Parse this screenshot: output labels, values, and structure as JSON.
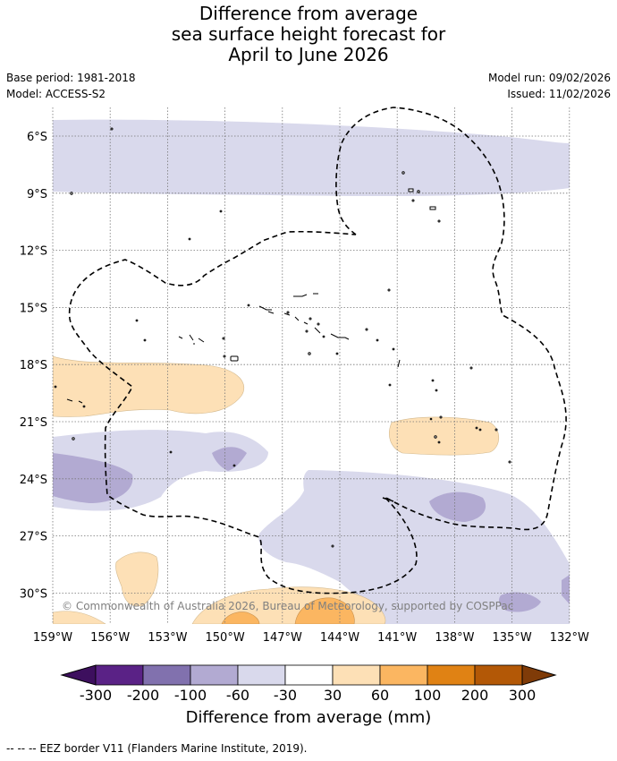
{
  "title": {
    "line1": "Difference from average",
    "line2": "sea surface height forecast for",
    "line3": "April to June 2026"
  },
  "meta_left": {
    "base_period": "Base period: 1981-2018",
    "model": "Model: ACCESS-S2"
  },
  "meta_right": {
    "model_run": "Model run: 09/02/2026",
    "issued": "Issued: 11/02/2026"
  },
  "map": {
    "lat_labels": [
      "6°S",
      "9°S",
      "12°S",
      "15°S",
      "18°S",
      "21°S",
      "24°S",
      "27°S",
      "30°S"
    ],
    "lon_labels": [
      "159°W",
      "156°W",
      "153°W",
      "150°W",
      "147°W",
      "144°W",
      "141°W",
      "138°W",
      "135°W",
      "132°W"
    ],
    "copyright": "© Commonwealth of Australia 2026, Bureau of Meteorology, supported by COSPPac"
  },
  "colorbar": {
    "title": "Difference from average (mm)",
    "tick_labels": [
      "-300",
      "-200",
      "-100",
      "-60",
      "-30",
      "30",
      "60",
      "100",
      "200",
      "300"
    ],
    "colors": [
      "#3d0f5e",
      "#5a2286",
      "#8171ae",
      "#b2aad2",
      "#d9d9ec",
      "#ffffff",
      "#fde0b6",
      "#fbb661",
      "#e08214",
      "#b35806",
      "#7f3b08"
    ]
  },
  "footnote": "--  --  -- EEZ border V11 (Flanders Marine Institute, 2019)."
}
